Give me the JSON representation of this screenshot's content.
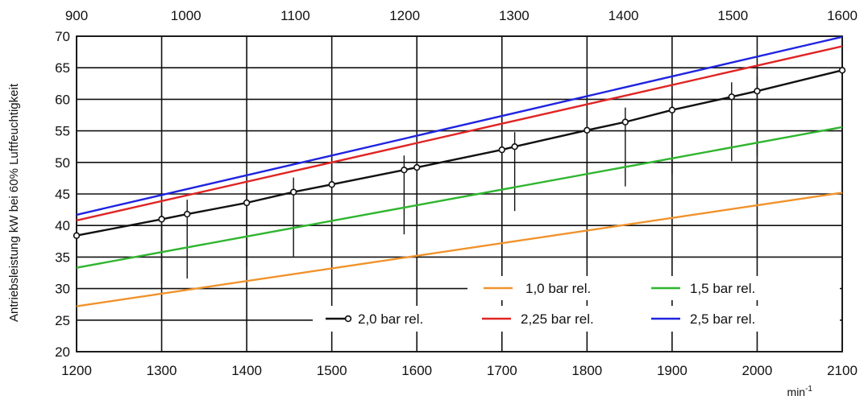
{
  "chart_data": {
    "type": "line",
    "title": "",
    "ylabel": "Antriebsleistung kW bei 60% Luftfeuchtigkeit",
    "xlabel_unit": "min",
    "xlabel_unit_sup": "-1",
    "x_bottom": {
      "min": 1200,
      "max": 2100,
      "ticks": [
        1200,
        1300,
        1400,
        1500,
        1600,
        1700,
        1800,
        1900,
        2000,
        2100
      ]
    },
    "x_top": {
      "min": 900,
      "max": 1600,
      "ticks": [
        900,
        1000,
        1100,
        1200,
        1300,
        1400,
        1500,
        1600
      ]
    },
    "y": {
      "min": 20,
      "max": 70,
      "ticks": [
        20,
        25,
        30,
        35,
        40,
        45,
        50,
        55,
        60,
        65,
        70
      ]
    },
    "grid": true,
    "legend_position": "bottom-right",
    "series": [
      {
        "name": "1,0 bar rel.",
        "color": "#f0922b",
        "x": [
          1200,
          2100
        ],
        "y": [
          27.2,
          45.2
        ]
      },
      {
        "name": "1,5 bar rel.",
        "color": "#2fb52f",
        "x": [
          1200,
          2100
        ],
        "y": [
          33.3,
          55.6
        ]
      },
      {
        "name": "2,0 bar rel.",
        "color": "#111111",
        "marker": "circle",
        "x": [
          1200,
          1300,
          1330,
          1400,
          1455,
          1500,
          1585,
          1600,
          1700,
          1715,
          1800,
          1845,
          1900,
          1970,
          2000,
          2100
        ],
        "y": [
          38.4,
          41.0,
          41.8,
          43.6,
          45.3,
          46.5,
          48.8,
          49.2,
          52.0,
          52.5,
          55.1,
          56.4,
          58.3,
          60.4,
          61.3,
          64.6
        ]
      },
      {
        "name": "2,25 bar rel.",
        "color": "#e02424",
        "x": [
          1200,
          2100
        ],
        "y": [
          40.8,
          68.4
        ]
      },
      {
        "name": "2,5 bar rel.",
        "color": "#1f24e0",
        "x": [
          1200,
          2100
        ],
        "y": [
          41.7,
          69.9
        ]
      }
    ]
  }
}
